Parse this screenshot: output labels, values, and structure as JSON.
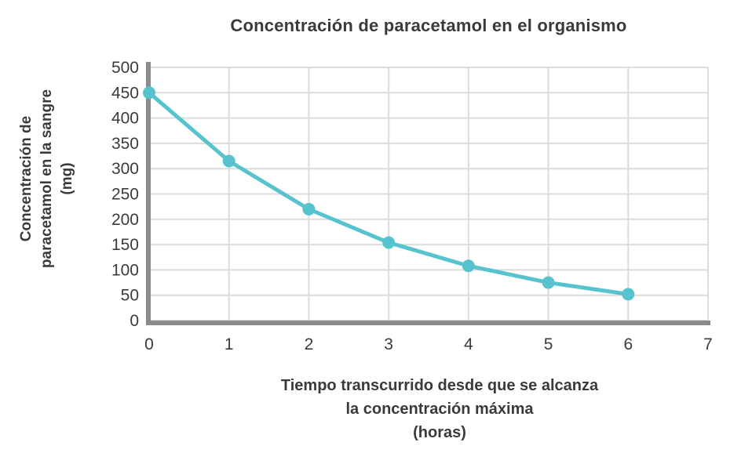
{
  "chart": {
    "title": "Concentración de paracetamol en el organismo",
    "y_axis_title_lines": [
      "Concentración de",
      "paracetamol en la sangre",
      "(mg)"
    ],
    "x_axis_title_lines": [
      "Tiempo transcurrido desde que se alcanza",
      "la concentración máxima",
      "(horas)"
    ]
  },
  "chart_data": {
    "type": "line",
    "title": "Concentración de paracetamol en el organismo",
    "xlabel": "Tiempo transcurrido desde que se alcanza la concentración máxima (horas)",
    "ylabel": "Concentración de paracetamol en la sangre (mg)",
    "x": [
      0,
      1,
      2,
      3,
      4,
      5,
      6
    ],
    "y": [
      450,
      315,
      220,
      154,
      108,
      75,
      52
    ],
    "xlim": [
      0,
      7
    ],
    "ylim": [
      0,
      500
    ],
    "xticks": [
      0,
      1,
      2,
      3,
      4,
      5,
      6,
      7
    ],
    "yticks": [
      0,
      50,
      100,
      150,
      200,
      250,
      300,
      350,
      400,
      450,
      500
    ],
    "grid": true,
    "legend": "none",
    "colors": {
      "line": "#56C3CE",
      "marker": "#56C3CE",
      "axis": "#8A8A8A",
      "gridline": "#DCDCDC",
      "text": "#3B3B3B"
    }
  }
}
